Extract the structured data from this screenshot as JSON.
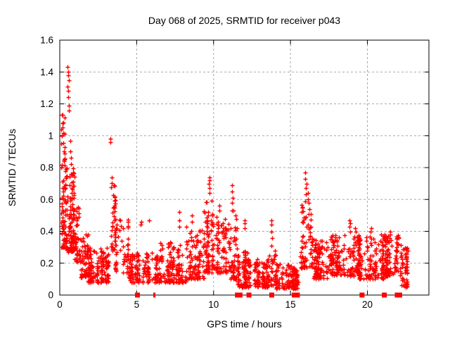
{
  "chart_data": {
    "type": "scatter",
    "title": "Day 068 of 2025, SRMTID for receiver p043",
    "xlabel": "GPS time / hours",
    "ylabel": "SRMTID / TECUs",
    "xlim": [
      0,
      24
    ],
    "ylim": [
      0,
      1.6
    ],
    "xticks": [
      0,
      5,
      10,
      15,
      20
    ],
    "xtick_labels": [
      "0",
      "5",
      "10",
      "15",
      "20"
    ],
    "yticks": [
      0,
      0.2,
      0.4,
      0.6,
      0.8,
      1.0,
      1.2,
      1.4,
      1.6
    ],
    "ytick_labels": [
      "0",
      "0.2",
      "0.4",
      "0.6",
      "0.8",
      "1",
      "1.2",
      "1.4",
      "1.6"
    ],
    "grid": true,
    "legend": "none",
    "marker": "plus",
    "marker_color": "#ff0000",
    "grid_color": "#a8a8a8",
    "axis_color": "#000000",
    "background_color": "#ffffff",
    "seed": 68,
    "bands": [
      {
        "t0": 0.05,
        "t1": 0.35,
        "n": 55,
        "vmin": 0.3,
        "vmax": 0.82,
        "bias": 1.4
      },
      {
        "t0": 0.05,
        "t1": 0.3,
        "n": 12,
        "vmin": 0.82,
        "vmax": 1.14,
        "bias": 1.0
      },
      {
        "t0": 0.35,
        "t1": 0.95,
        "n": 130,
        "vmin": 0.27,
        "vmax": 0.8,
        "bias": 1.5
      },
      {
        "t0": 0.95,
        "t1": 1.35,
        "n": 45,
        "vmin": 0.2,
        "vmax": 0.56,
        "bias": 1.5
      },
      {
        "t0": 1.35,
        "t1": 1.85,
        "n": 55,
        "vmin": 0.11,
        "vmax": 0.38,
        "bias": 1.6
      },
      {
        "t0": 1.85,
        "t1": 3.15,
        "n": 150,
        "vmin": 0.08,
        "vmax": 0.3,
        "bias": 1.6
      },
      {
        "t0": 3.25,
        "t1": 3.65,
        "n": 38,
        "vmin": 0.28,
        "vmax": 0.76,
        "bias": 1.6
      },
      {
        "t0": 3.6,
        "t1": 4.45,
        "n": 60,
        "vmin": 0.14,
        "vmax": 0.48,
        "bias": 1.7
      },
      {
        "t0": 4.45,
        "t1": 6.45,
        "n": 150,
        "vmin": 0.08,
        "vmax": 0.27,
        "bias": 1.6
      },
      {
        "t0": 6.45,
        "t1": 8.25,
        "n": 145,
        "vmin": 0.08,
        "vmax": 0.33,
        "bias": 1.7
      },
      {
        "t0": 8.25,
        "t1": 9.35,
        "n": 100,
        "vmin": 0.1,
        "vmax": 0.44,
        "bias": 1.8
      },
      {
        "t0": 9.35,
        "t1": 10.15,
        "n": 90,
        "vmin": 0.14,
        "vmax": 0.62,
        "bias": 1.9
      },
      {
        "t0": 10.15,
        "t1": 10.85,
        "n": 70,
        "vmin": 0.14,
        "vmax": 0.5,
        "bias": 1.8
      },
      {
        "t0": 10.85,
        "t1": 11.55,
        "n": 60,
        "vmin": 0.1,
        "vmax": 0.55,
        "bias": 1.8
      },
      {
        "t0": 11.55,
        "t1": 12.65,
        "n": 110,
        "vmin": 0.05,
        "vmax": 0.28,
        "bias": 1.6
      },
      {
        "t0": 12.65,
        "t1": 13.55,
        "n": 90,
        "vmin": 0.05,
        "vmax": 0.24,
        "bias": 1.5
      },
      {
        "t0": 13.55,
        "t1": 14.05,
        "n": 40,
        "vmin": 0.06,
        "vmax": 0.28,
        "bias": 1.6
      },
      {
        "t0": 14.05,
        "t1": 15.65,
        "n": 130,
        "vmin": 0.04,
        "vmax": 0.2,
        "bias": 1.5
      },
      {
        "t0": 15.65,
        "t1": 16.4,
        "n": 75,
        "vmin": 0.17,
        "vmax": 0.6,
        "bias": 1.7
      },
      {
        "t0": 16.4,
        "t1": 17.65,
        "n": 110,
        "vmin": 0.1,
        "vmax": 0.35,
        "bias": 1.5
      },
      {
        "t0": 17.65,
        "t1": 19.45,
        "n": 160,
        "vmin": 0.12,
        "vmax": 0.38,
        "bias": 1.5
      },
      {
        "t0": 19.45,
        "t1": 21.05,
        "n": 150,
        "vmin": 0.1,
        "vmax": 0.38,
        "bias": 1.5
      },
      {
        "t0": 21.05,
        "t1": 22.15,
        "n": 110,
        "vmin": 0.12,
        "vmax": 0.38,
        "bias": 1.5
      },
      {
        "t0": 22.15,
        "t1": 22.7,
        "n": 55,
        "vmin": 0.05,
        "vmax": 0.3,
        "bias": 1.3
      }
    ],
    "spikes": [
      {
        "t": 0.15,
        "values": [
          0.95,
          1.0,
          1.04,
          1.08,
          1.13
        ]
      },
      {
        "t": 0.25,
        "values": [
          0.85,
          0.9
        ]
      },
      {
        "t": 0.55,
        "values": [
          1.16,
          1.19,
          1.24,
          1.28,
          1.31,
          1.35,
          1.38,
          1.4,
          1.43
        ]
      },
      {
        "t": 0.72,
        "values": [
          0.82,
          0.86,
          0.9,
          0.97
        ]
      },
      {
        "t": 3.32,
        "values": [
          0.96,
          0.98
        ]
      },
      {
        "t": 5.3,
        "values": [
          0.44,
          0.46
        ]
      },
      {
        "t": 5.8,
        "values": [
          0.47
        ]
      },
      {
        "t": 7.75,
        "values": [
          0.43,
          0.47,
          0.52
        ]
      },
      {
        "t": 8.55,
        "values": [
          0.46,
          0.5
        ]
      },
      {
        "t": 9.7,
        "values": [
          0.64,
          0.67,
          0.7,
          0.72,
          0.74
        ]
      },
      {
        "t": 10.35,
        "values": [
          0.53,
          0.56
        ]
      },
      {
        "t": 11.2,
        "values": [
          0.58,
          0.61,
          0.65,
          0.69
        ]
      },
      {
        "t": 12.05,
        "values": [
          0.42,
          0.45,
          0.47
        ]
      },
      {
        "t": 13.78,
        "values": [
          0.31,
          0.36,
          0.4,
          0.44,
          0.47
        ]
      },
      {
        "t": 16.0,
        "values": [
          0.63,
          0.67,
          0.7,
          0.73,
          0.77
        ]
      },
      {
        "t": 16.15,
        "values": [
          0.6,
          0.64
        ]
      },
      {
        "t": 18.85,
        "values": [
          0.4,
          0.43,
          0.45,
          0.47
        ]
      },
      {
        "t": 19.2,
        "values": [
          0.4,
          0.42
        ]
      },
      {
        "t": 20.2,
        "values": [
          0.4,
          0.42
        ]
      },
      {
        "t": 21.5,
        "values": [
          0.38,
          0.4
        ]
      }
    ],
    "zero_markers": [
      {
        "t": 5.05
      },
      {
        "t": 6.15,
        "w": 3
      },
      {
        "t": 11.55
      },
      {
        "t": 11.72
      },
      {
        "t": 12.3
      },
      {
        "t": 13.78
      },
      {
        "t": 15.25
      },
      {
        "t": 15.45
      },
      {
        "t": 19.65
      },
      {
        "t": 21.1
      },
      {
        "t": 21.85,
        "w": 3
      },
      {
        "t": 21.95
      },
      {
        "t": 22.1
      }
    ]
  }
}
